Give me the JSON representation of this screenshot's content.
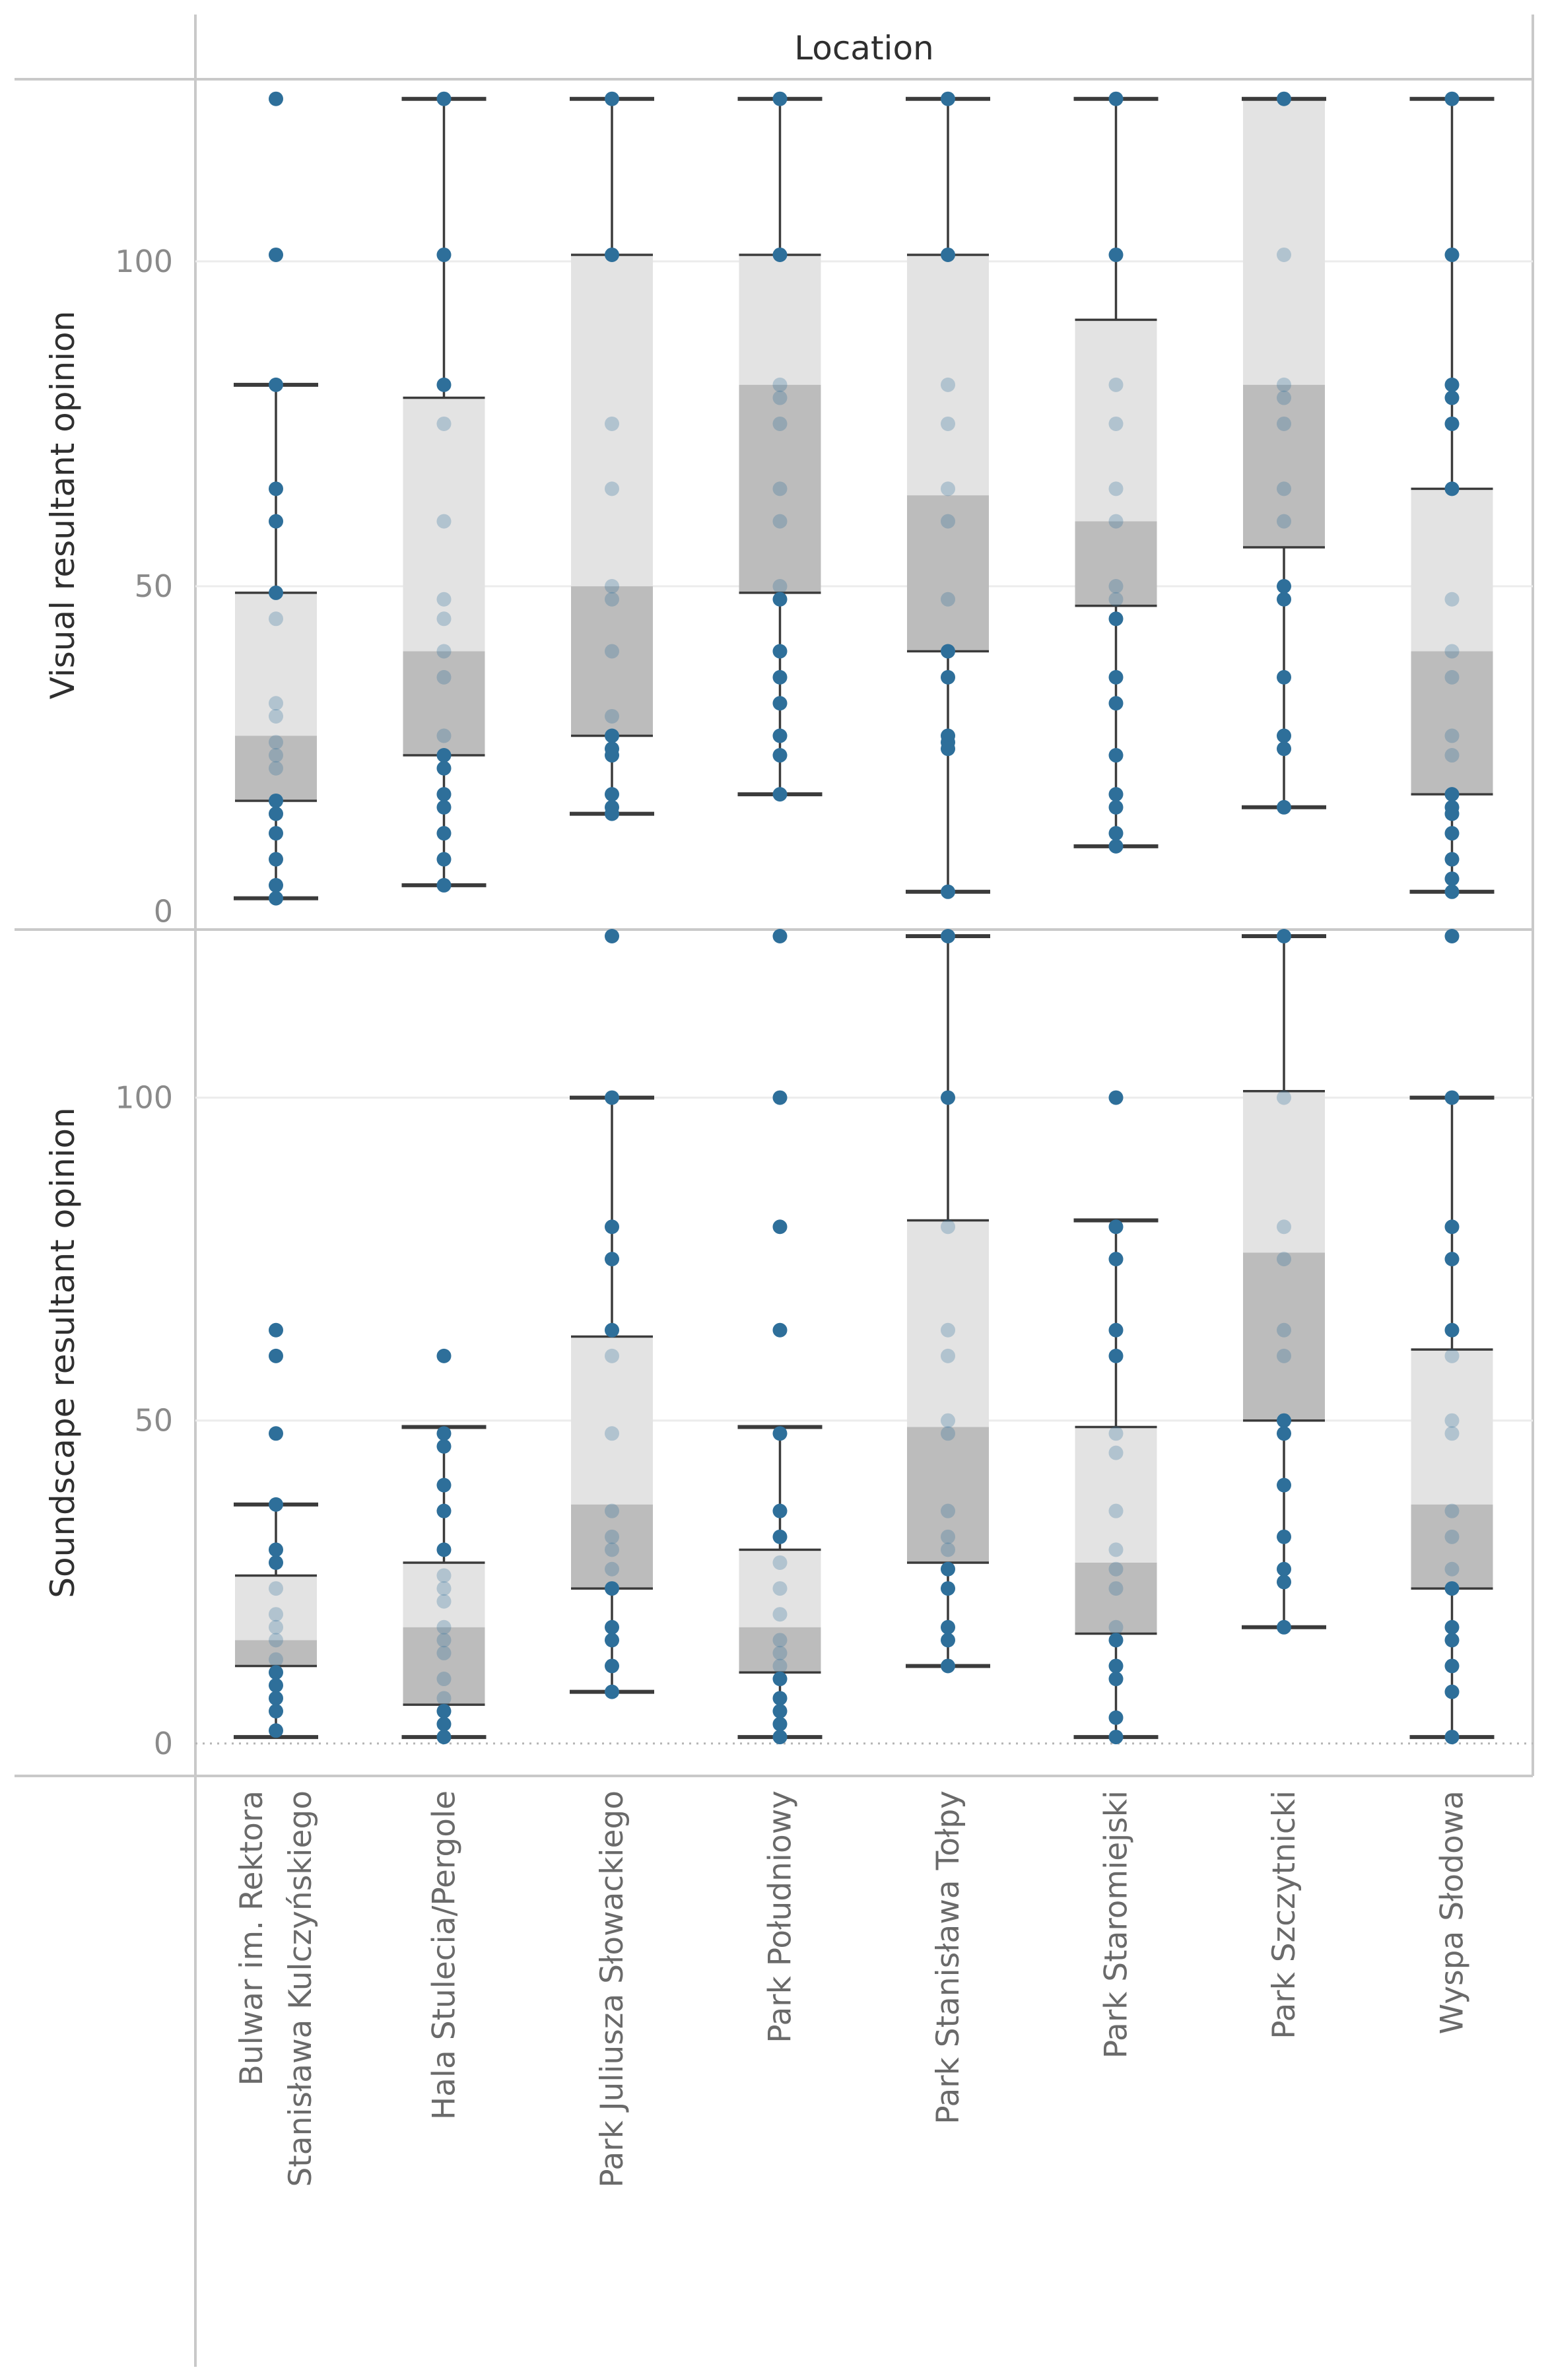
{
  "chart_data": {
    "type": "boxplot",
    "header": "Location",
    "categories": [
      [
        "Bulwar im. Rektora",
        "Stanisława Kulczyńskiego"
      ],
      [
        "Hala Stulecia/Pergole"
      ],
      [
        "Park Juliusza Słowackiego"
      ],
      [
        "Park Południowy"
      ],
      [
        "Park Stanisława Tołpy"
      ],
      [
        "Park Staromiejski"
      ],
      [
        "Park Szczytnicki"
      ],
      [
        "Wyspa Słodowa"
      ]
    ],
    "colors": {
      "point": "#2e6f9a",
      "box_upper": "#e3e3e3",
      "box_lower": "#bcbcbc",
      "whisker": "#3b3b3b",
      "grid": "#ececec",
      "divider": "#c9c9c9"
    },
    "panels": [
      {
        "ylabel": "Visual resultant opinion",
        "ylim": [
          -2,
          127
        ],
        "yticks": [
          0,
          50,
          100
        ],
        "tick_labels": [
          "0",
          "50",
          "100"
        ],
        "zero_line": false,
        "boxes": [
          {
            "low": 2,
            "q1": 17,
            "median": 27,
            "q3": 49,
            "high": 81,
            "whisker_high_cap": true
          },
          {
            "low": 4,
            "q1": 24,
            "median": 40,
            "q3": 79,
            "high": 125,
            "whisker_high_cap": true
          },
          {
            "low": 15,
            "q1": 27,
            "median": 50,
            "q3": 101,
            "high": 125,
            "whisker_high_cap": true
          },
          {
            "low": 18,
            "q1": 49,
            "median": 81,
            "q3": 101,
            "high": 125,
            "whisker_high_cap": true
          },
          {
            "low": 3,
            "q1": 40,
            "median": 64,
            "q3": 101,
            "high": 125,
            "whisker_high_cap": true
          },
          {
            "low": 10,
            "q1": 47,
            "median": 60,
            "q3": 91,
            "high": 125,
            "whisker_high_cap": true
          },
          {
            "low": 16,
            "q1": 56,
            "median": 81,
            "q3": 125,
            "high": 125,
            "whisker_high_cap": true
          },
          {
            "low": 3,
            "q1": 18,
            "median": 40,
            "q3": 65,
            "high": 125,
            "whisker_high_cap": true
          }
        ],
        "points": [
          [
            125,
            101,
            81,
            65,
            60,
            49,
            45,
            32,
            30,
            26,
            24,
            22,
            17,
            15,
            12,
            8,
            4,
            2
          ],
          [
            125,
            101,
            81,
            75,
            60,
            48,
            45,
            40,
            36,
            27,
            24,
            22,
            18,
            16,
            12,
            8,
            4
          ],
          [
            125,
            101,
            75,
            65,
            50,
            48,
            40,
            30,
            27,
            25,
            24,
            18,
            16,
            15
          ],
          [
            125,
            101,
            81,
            79,
            75,
            65,
            60,
            50,
            48,
            40,
            36,
            32,
            27,
            24,
            18
          ],
          [
            125,
            101,
            81,
            75,
            65,
            60,
            48,
            40,
            36,
            27,
            26,
            25,
            3
          ],
          [
            125,
            101,
            81,
            75,
            65,
            60,
            50,
            48,
            45,
            36,
            32,
            24,
            18,
            16,
            12,
            10
          ],
          [
            125,
            101,
            81,
            79,
            75,
            65,
            60,
            50,
            48,
            36,
            27,
            25,
            16
          ],
          [
            125,
            101,
            81,
            79,
            75,
            65,
            48,
            40,
            36,
            27,
            24,
            18,
            16,
            15,
            12,
            8,
            5,
            3
          ]
        ]
      },
      {
        "ylabel": "Soundscape resultant opinion",
        "ylim": [
          -4,
          125
        ],
        "yticks": [
          0,
          50,
          100
        ],
        "tick_labels": [
          "0",
          "50",
          "100"
        ],
        "zero_line": true,
        "boxes": [
          {
            "low": 1,
            "q1": 12,
            "median": 16,
            "q3": 26,
            "high": 37,
            "whisker_high_cap": true
          },
          {
            "low": 1,
            "q1": 6,
            "median": 18,
            "q3": 28,
            "high": 49,
            "whisker_high_cap": true
          },
          {
            "low": 8,
            "q1": 24,
            "median": 37,
            "q3": 63,
            "high": 100,
            "whisker_high_cap": true
          },
          {
            "low": 1,
            "q1": 11,
            "median": 18,
            "q3": 30,
            "high": 49,
            "whisker_high_cap": true
          },
          {
            "low": 12,
            "q1": 28,
            "median": 49,
            "q3": 81,
            "high": 125,
            "whisker_high_cap": true
          },
          {
            "low": 1,
            "q1": 17,
            "median": 28,
            "q3": 49,
            "high": 81,
            "whisker_high_cap": true
          },
          {
            "low": 18,
            "q1": 50,
            "median": 76,
            "q3": 101,
            "high": 125,
            "whisker_high_cap": true
          },
          {
            "low": 1,
            "q1": 24,
            "median": 37,
            "q3": 61,
            "high": 100,
            "whisker_high_cap": true
          }
        ],
        "points": [
          [
            64,
            60,
            48,
            37,
            30,
            28,
            24,
            20,
            18,
            16,
            13,
            11,
            9,
            7,
            5,
            2
          ],
          [
            60,
            48,
            46,
            40,
            36,
            30,
            26,
            24,
            22,
            18,
            16,
            14,
            10,
            7,
            5,
            3,
            1
          ],
          [
            125,
            100,
            80,
            75,
            64,
            60,
            48,
            36,
            32,
            30,
            27,
            24,
            18,
            16,
            12,
            8
          ],
          [
            125,
            100,
            80,
            64,
            48,
            36,
            32,
            28,
            24,
            20,
            16,
            14,
            12,
            10,
            7,
            5,
            3,
            1
          ],
          [
            125,
            100,
            80,
            64,
            60,
            50,
            48,
            36,
            32,
            30,
            27,
            24,
            18,
            16,
            12
          ],
          [
            100,
            80,
            75,
            64,
            60,
            48,
            45,
            36,
            30,
            27,
            24,
            18,
            16,
            12,
            10,
            4,
            1
          ],
          [
            125,
            100,
            80,
            75,
            64,
            60,
            50,
            48,
            40,
            32,
            27,
            25,
            18
          ],
          [
            125,
            100,
            80,
            75,
            64,
            60,
            50,
            48,
            36,
            32,
            27,
            24,
            18,
            16,
            12,
            8,
            1
          ]
        ]
      }
    ]
  }
}
